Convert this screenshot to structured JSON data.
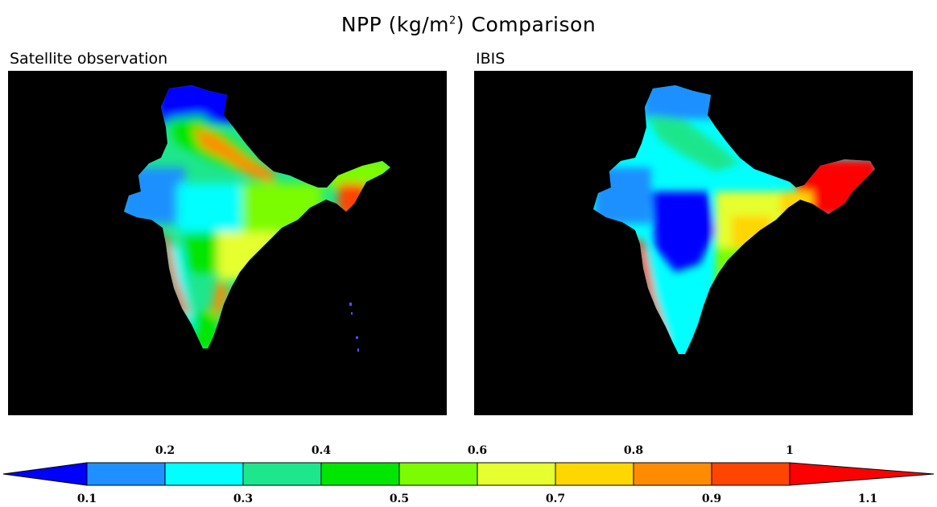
{
  "figure": {
    "title_prefix": "NPP (kg/m",
    "title_sup": "2",
    "title_suffix": ") Comparison"
  },
  "panels": [
    {
      "title": "Satellite observation"
    },
    {
      "title": "IBIS"
    }
  ],
  "colorbar": {
    "top_labels": [
      "0.2",
      "0.4",
      "0.6",
      "0.8",
      "1"
    ],
    "bottom_labels": [
      "0.1",
      "0.3",
      "0.5",
      "0.7",
      "0.9",
      "1.1"
    ],
    "colors": [
      "#0000ff",
      "#1e90ff",
      "#00ffff",
      "#1ee68c",
      "#00e600",
      "#7cfc00",
      "#e6ff2e",
      "#ffd700",
      "#ff8c00",
      "#ff4500",
      "#ff0000"
    ],
    "background_color": "#000000"
  }
}
